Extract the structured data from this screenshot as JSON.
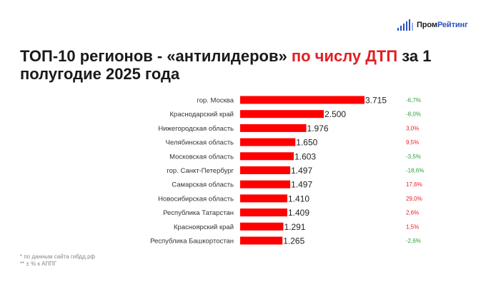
{
  "logo": {
    "name_part1": "Пром",
    "name_part2": "Рейтинг",
    "icon": "bar-chart-icon"
  },
  "title": {
    "part1": "ТОП-10 регионов - «антилидеров» ",
    "highlight": "по числу ДТП",
    "part2": " за 1 полугодие 2025 года"
  },
  "footnotes": [
    "* по данным сайта гибдд.рф",
    "** ± % к АППГ"
  ],
  "colors": {
    "bar": "#ff0000",
    "positive_change": "#e31e24",
    "negative_change": "#2e9e3e",
    "logo_accent": "#2a4fc2"
  },
  "chart_data": {
    "type": "bar",
    "orientation": "horizontal",
    "categories": [
      "гор. Москва",
      "Краснодарский край",
      "Нижегородская область",
      "Челябинская область",
      "Московская область",
      "гор. Санкт-Петербург",
      "Самарская область",
      "Новосибирская область",
      "Республика Татарстан",
      "Красноярский край",
      "Республика Башкортостан"
    ],
    "values": [
      3715,
      2500,
      1976,
      1650,
      1603,
      1497,
      1497,
      1410,
      1409,
      1291,
      1265
    ],
    "value_labels": [
      "3.715",
      "2.500",
      "1.976",
      "1.650",
      "1.603",
      "1.497",
      "1.497",
      "1.410",
      "1.409",
      "1.291",
      "1.265"
    ],
    "changes": [
      "-6,7%",
      "-8,0%",
      "3,0%",
      "9,5%",
      "-3,5%",
      "-18,6%",
      "17,6%",
      "29,0%",
      "2,6%",
      "1,5%",
      "-2,6%"
    ],
    "change_values": [
      -6.7,
      -8.0,
      3.0,
      9.5,
      -3.5,
      -18.6,
      17.6,
      29.0,
      2.6,
      1.5,
      -2.6
    ],
    "xlim": [
      0,
      3715
    ],
    "grid": false,
    "legend": "none"
  }
}
